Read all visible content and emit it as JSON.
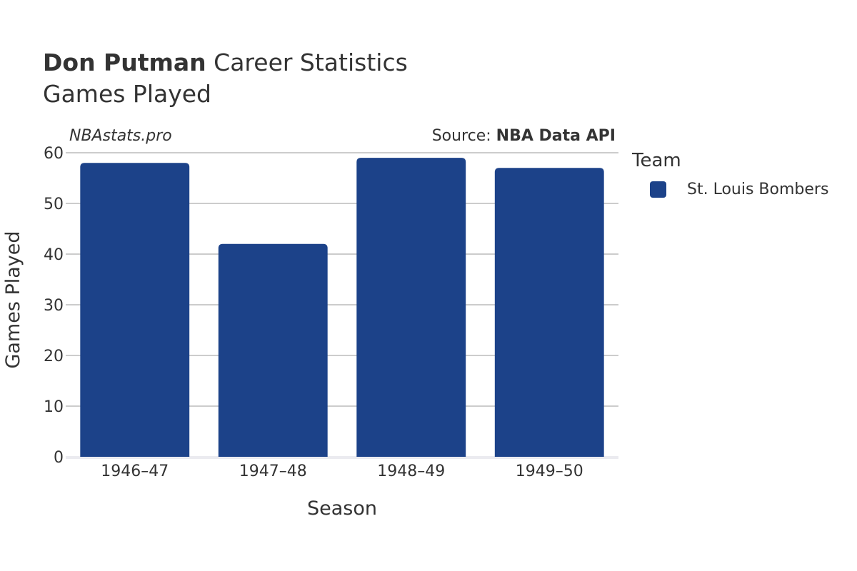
{
  "header": {
    "title_bold": "Don Putman",
    "title_rest": "Career Statistics",
    "subtitle": "Games Played",
    "site": "NBAstats.pro",
    "source_prefix": "Source: ",
    "source_name": "NBA Data API"
  },
  "legend": {
    "title": "Team",
    "items": [
      {
        "label": "St. Louis Bombers",
        "color": "#1c4289"
      }
    ]
  },
  "chart_data": {
    "type": "bar",
    "categories": [
      "1946–47",
      "1947–48",
      "1948–49",
      "1949–50"
    ],
    "series": [
      {
        "name": "St. Louis Bombers",
        "values": [
          58,
          42,
          59,
          57
        ],
        "color": "#1c4289"
      }
    ],
    "xlabel": "Season",
    "ylabel": "Games Played",
    "ylim": [
      0,
      60
    ],
    "yticks": [
      0,
      10,
      20,
      30,
      40,
      50,
      60
    ],
    "grid": true,
    "legend_position": "right"
  }
}
